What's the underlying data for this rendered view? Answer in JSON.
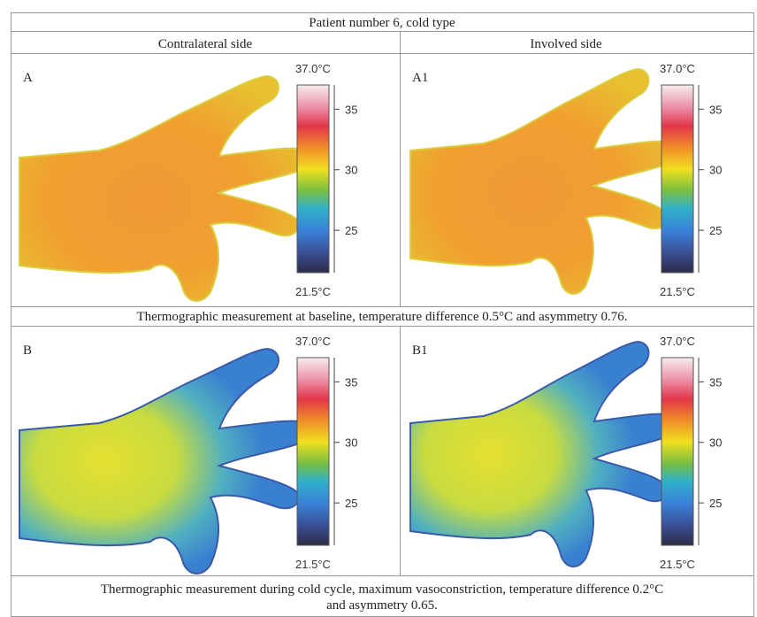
{
  "title": "Patient number 6, cold type",
  "columns": [
    "Contralateral side",
    "Involved side"
  ],
  "rows": [
    {
      "panels": [
        {
          "label": "A",
          "scale": {
            "max": "37.0°C",
            "min": "21.5°C",
            "ticks": [
              35,
              30,
              25
            ]
          }
        },
        {
          "label": "A1",
          "scale": {
            "max": "37.0°C",
            "min": "21.5°C",
            "ticks": [
              35,
              30,
              25
            ]
          }
        }
      ],
      "caption": [
        "Thermographic measurement at baseline, temperature difference 0.5°C and asymmetry 0.76."
      ]
    },
    {
      "panels": [
        {
          "label": "B",
          "scale": {
            "max": "37.0°C",
            "min": "21.5°C",
            "ticks": [
              35,
              30,
              25
            ]
          }
        },
        {
          "label": "B1",
          "scale": {
            "max": "37.0°C",
            "min": "21.5°C",
            "ticks": [
              35,
              30,
              25
            ]
          }
        }
      ],
      "caption": [
        "Thermographic measurement during cold cycle, maximum vasoconstriction, temperature difference 0.2°C",
        "and asymmetry 0.65."
      ]
    }
  ]
}
